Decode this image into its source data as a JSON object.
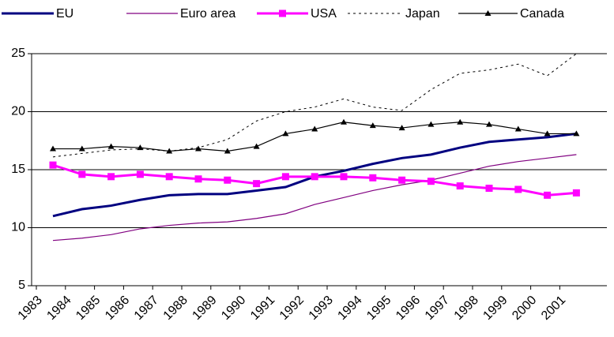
{
  "chart_data": {
    "type": "line",
    "categories": [
      "1983",
      "1984",
      "1985",
      "1986",
      "1987",
      "1988",
      "1989",
      "1990",
      "1991",
      "1992",
      "1993",
      "1994",
      "1995",
      "1996",
      "1997",
      "1998",
      "1999",
      "2000",
      "2001"
    ],
    "series": [
      {
        "name": "EU",
        "color": "#000080",
        "width": 3,
        "values": [
          11.0,
          11.6,
          11.9,
          12.4,
          12.8,
          12.9,
          12.9,
          13.2,
          13.5,
          14.4,
          14.9,
          15.5,
          16.0,
          16.3,
          16.9,
          17.4,
          17.6,
          17.8,
          18.1
        ]
      },
      {
        "name": "Euro area",
        "color": "#800080",
        "width": 1.2,
        "values": [
          8.9,
          9.1,
          9.4,
          9.9,
          10.2,
          10.4,
          10.5,
          10.8,
          11.2,
          12.0,
          12.6,
          13.2,
          13.7,
          14.1,
          14.7,
          15.3,
          15.7,
          16.0,
          16.3
        ]
      },
      {
        "name": "USA",
        "color": "#ff00ff",
        "width": 3,
        "marker": "square",
        "values": [
          15.4,
          14.6,
          14.4,
          14.6,
          14.4,
          14.2,
          14.1,
          13.8,
          14.4,
          14.4,
          14.4,
          14.3,
          14.1,
          14.0,
          13.6,
          13.4,
          13.3,
          12.8,
          13.0
        ]
      },
      {
        "name": "Japan",
        "color": "#000000",
        "width": 1,
        "dashed": true,
        "values": [
          16.1,
          16.4,
          16.7,
          16.8,
          16.6,
          16.9,
          17.6,
          19.2,
          20.0,
          20.4,
          21.1,
          20.4,
          20.1,
          21.9,
          23.3,
          23.6,
          24.1,
          23.1,
          25.0
        ]
      },
      {
        "name": "Canada",
        "color": "#000000",
        "width": 1.2,
        "marker": "triangle",
        "values": [
          16.8,
          16.8,
          17.0,
          16.9,
          16.6,
          16.8,
          16.6,
          17.0,
          18.1,
          18.5,
          19.1,
          18.8,
          18.6,
          18.9,
          19.1,
          18.9,
          18.5,
          18.1,
          18.1
        ]
      }
    ],
    "ylim": [
      5,
      25
    ],
    "yticks": [
      5,
      10,
      15,
      20,
      25
    ],
    "grid": true
  }
}
